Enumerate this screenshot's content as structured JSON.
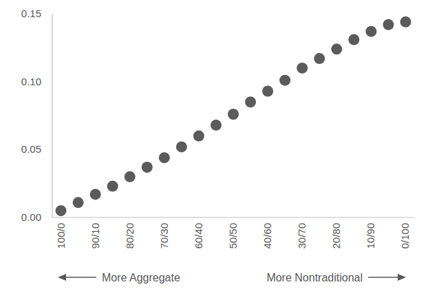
{
  "chart_data": {
    "type": "scatter",
    "categories": [
      "100/0",
      null,
      "90/10",
      null,
      "80/20",
      null,
      "70/30",
      null,
      "60/40",
      null,
      "50/50",
      null,
      "40/60",
      null,
      "30/70",
      null,
      "20/80",
      null,
      "10/90",
      null,
      "0/100"
    ],
    "values": [
      0.005,
      0.011,
      0.017,
      0.023,
      0.03,
      0.037,
      0.044,
      0.052,
      0.06,
      0.068,
      0.076,
      0.085,
      0.093,
      0.101,
      0.11,
      0.117,
      0.124,
      0.131,
      0.137,
      0.142,
      0.144
    ],
    "color": "#5b5b5b",
    "marker": "circle",
    "ylim": [
      0,
      0.15
    ],
    "yticks": [
      {
        "value": 0,
        "label": "0.00"
      },
      {
        "value": 0.05,
        "label": "0.05"
      },
      {
        "value": 0.1,
        "label": "0.10"
      },
      {
        "value": 0.15,
        "label": "0.15"
      }
    ],
    "grid": false,
    "annotations": [
      "More Aggregate",
      "More Nontraditional"
    ]
  }
}
